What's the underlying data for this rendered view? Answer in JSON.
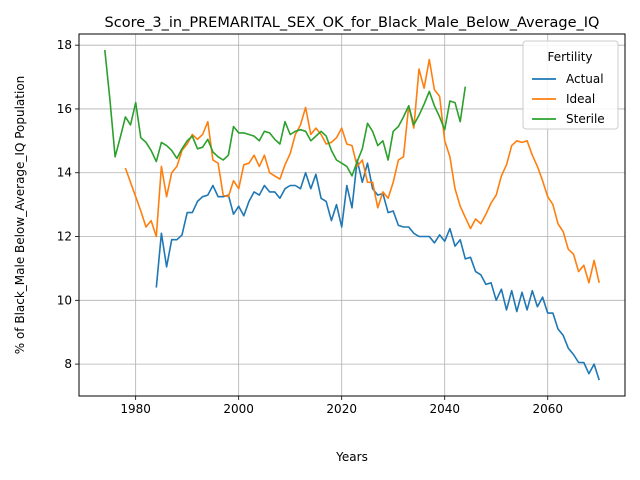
{
  "chart_data": {
    "type": "line",
    "title": "Score_3_in_PREMARITAL_SEX_OK_for_Black_Male_Below_Average_IQ",
    "xlabel": "Years",
    "ylabel": "% of Black_Male Below_Average_IQ Population",
    "xlim": [
      1969,
      2075
    ],
    "ylim": [
      7.0,
      18.35
    ],
    "xticks": [
      1980,
      2000,
      2020,
      2040,
      2060
    ],
    "yticks": [
      8,
      10,
      12,
      14,
      16,
      18
    ],
    "grid": true,
    "legend": {
      "title": "Fertility",
      "position": "top-right"
    },
    "series": [
      {
        "name": "Actual",
        "color": "#1f77b4",
        "x": [
          1984,
          1985,
          1986,
          1987,
          1988,
          1989,
          1990,
          1991,
          1992,
          1993,
          1994,
          1995,
          1996,
          1997,
          1998,
          1999,
          2000,
          2001,
          2002,
          2003,
          2004,
          2005,
          2006,
          2007,
          2008,
          2009,
          2010,
          2011,
          2012,
          2013,
          2014,
          2015,
          2016,
          2017,
          2018,
          2019,
          2020,
          2021,
          2022,
          2023,
          2024,
          2025,
          2026,
          2027,
          2028,
          2029,
          2030,
          2031,
          2032,
          2033,
          2034,
          2035,
          2036,
          2037,
          2038,
          2039,
          2040,
          2041,
          2042,
          2043,
          2044,
          2045,
          2046,
          2047,
          2048,
          2049,
          2050,
          2051,
          2052,
          2053,
          2054,
          2055,
          2056,
          2057,
          2058,
          2059,
          2060,
          2061,
          2062,
          2063,
          2064,
          2065,
          2066,
          2067,
          2068,
          2069,
          2070
        ],
        "values": [
          10.4,
          12.1,
          11.05,
          11.9,
          11.9,
          12.05,
          12.75,
          12.75,
          13.1,
          13.25,
          13.3,
          13.6,
          13.25,
          13.25,
          13.3,
          12.7,
          12.95,
          12.65,
          13.1,
          13.4,
          13.3,
          13.6,
          13.4,
          13.4,
          13.2,
          13.5,
          13.6,
          13.6,
          13.5,
          14.0,
          13.5,
          13.95,
          13.2,
          13.1,
          12.5,
          13.0,
          12.3,
          13.6,
          12.9,
          14.4,
          13.7,
          14.3,
          13.5,
          13.3,
          13.35,
          12.75,
          12.8,
          12.35,
          12.3,
          12.3,
          12.1,
          12.0,
          12.0,
          12.0,
          11.8,
          12.05,
          11.85,
          12.25,
          11.7,
          11.9,
          11.3,
          11.35,
          10.9,
          10.8,
          10.5,
          10.55,
          10.0,
          10.35,
          9.7,
          10.3,
          9.65,
          10.25,
          9.7,
          10.3,
          9.8,
          10.1,
          9.6,
          9.6,
          9.1,
          8.9,
          8.5,
          8.3,
          8.05,
          8.05,
          7.7,
          8.0,
          7.5
        ]
      },
      {
        "name": "Ideal",
        "color": "#ff7f0e",
        "x": [
          1978,
          1979,
          1980,
          1981,
          1982,
          1983,
          1984,
          1985,
          1986,
          1987,
          1988,
          1989,
          1990,
          1991,
          1992,
          1993,
          1994,
          1995,
          1996,
          1997,
          1998,
          1999,
          2000,
          2001,
          2002,
          2003,
          2004,
          2005,
          2006,
          2007,
          2008,
          2009,
          2010,
          2011,
          2012,
          2013,
          2014,
          2015,
          2016,
          2017,
          2018,
          2019,
          2020,
          2021,
          2022,
          2023,
          2024,
          2025,
          2026,
          2027,
          2028,
          2029,
          2030,
          2031,
          2032,
          2033,
          2034,
          2035,
          2036,
          2037,
          2038,
          2039,
          2040,
          2041,
          2042,
          2043,
          2044,
          2045,
          2046,
          2047,
          2048,
          2049,
          2050,
          2051,
          2052,
          2053,
          2054,
          2055,
          2056,
          2057,
          2058,
          2059,
          2060,
          2061,
          2062,
          2063,
          2064,
          2065,
          2066,
          2067,
          2068,
          2069,
          2070
        ],
        "values": [
          14.15,
          13.7,
          13.25,
          12.8,
          12.3,
          12.5,
          12.0,
          14.2,
          13.25,
          14.0,
          14.2,
          14.7,
          14.9,
          15.2,
          15.05,
          15.2,
          15.6,
          14.4,
          14.3,
          13.3,
          13.25,
          13.75,
          13.5,
          14.25,
          14.3,
          14.55,
          14.2,
          14.55,
          14.0,
          13.9,
          13.8,
          14.25,
          14.6,
          15.2,
          15.5,
          16.05,
          15.2,
          15.4,
          15.2,
          14.9,
          14.95,
          15.1,
          15.4,
          14.9,
          14.85,
          14.2,
          14.4,
          13.7,
          13.7,
          12.9,
          13.4,
          13.2,
          13.7,
          14.4,
          14.5,
          16.1,
          15.4,
          17.25,
          16.65,
          17.55,
          16.6,
          16.4,
          15.0,
          14.5,
          13.5,
          12.95,
          12.6,
          12.25,
          12.55,
          12.4,
          12.7,
          13.05,
          13.3,
          13.9,
          14.25,
          14.85,
          15.0,
          14.95,
          15.0,
          14.55,
          14.2,
          13.75,
          13.25,
          13.0,
          12.4,
          12.15,
          11.6,
          11.45,
          10.9,
          11.1,
          10.55,
          11.25,
          10.55
        ]
      },
      {
        "name": "Sterile",
        "color": "#2ca02c",
        "x": [
          1974,
          1975,
          1976,
          1977,
          1978,
          1979,
          1980,
          1981,
          1982,
          1983,
          1984,
          1985,
          1986,
          1987,
          1988,
          1989,
          1990,
          1991,
          1992,
          1993,
          1994,
          1995,
          1996,
          1997,
          1998,
          1999,
          2000,
          2001,
          2002,
          2003,
          2004,
          2005,
          2006,
          2007,
          2008,
          2009,
          2010,
          2011,
          2012,
          2013,
          2014,
          2015,
          2016,
          2017,
          2018,
          2019,
          2020,
          2021,
          2022,
          2023,
          2024,
          2025,
          2026,
          2027,
          2028,
          2029,
          2030,
          2031,
          2032,
          2033,
          2034,
          2035,
          2036,
          2037,
          2038,
          2039,
          2040,
          2041,
          2042,
          2043,
          2044
        ],
        "values": [
          17.85,
          16.3,
          14.5,
          15.1,
          15.75,
          15.5,
          16.2,
          15.1,
          14.95,
          14.7,
          14.35,
          14.95,
          14.85,
          14.7,
          14.45,
          14.75,
          15.0,
          15.15,
          14.75,
          14.8,
          15.05,
          14.65,
          14.5,
          14.4,
          14.55,
          15.45,
          15.25,
          15.25,
          15.2,
          15.15,
          15.0,
          15.3,
          15.25,
          15.05,
          14.9,
          15.6,
          15.2,
          15.3,
          15.35,
          15.3,
          15.0,
          15.15,
          15.3,
          15.15,
          14.7,
          14.4,
          14.3,
          14.2,
          13.9,
          14.35,
          14.75,
          15.55,
          15.3,
          14.85,
          15.0,
          14.4,
          15.3,
          15.45,
          15.75,
          16.1,
          15.5,
          15.8,
          16.15,
          16.55,
          16.1,
          15.75,
          15.35,
          16.25,
          16.2,
          15.6,
          16.7
        ]
      }
    ]
  }
}
